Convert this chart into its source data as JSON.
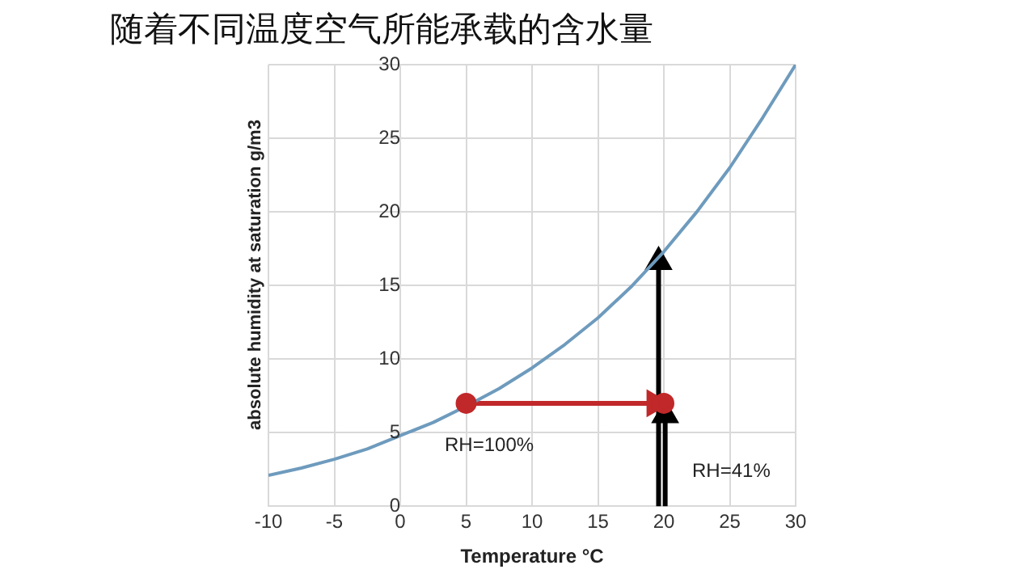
{
  "chart_data": {
    "type": "line",
    "title": "随着不同温度空气所能承载的含水量",
    "xlabel": "Temperature °C",
    "ylabel": "absolute humidity at saturation g/m3",
    "xlim": [
      -10,
      30
    ],
    "xticks": [
      -10,
      -5,
      0,
      5,
      10,
      15,
      20,
      25,
      30
    ],
    "ylim": [
      0,
      30
    ],
    "yticks": [
      0,
      5,
      10,
      15,
      20,
      25,
      30
    ],
    "grid": true,
    "legend": false,
    "series": [
      {
        "color": "#6e9bbd",
        "marker": "none",
        "x": [
          -10,
          -7.5,
          -5,
          -2.5,
          0,
          2.5,
          5,
          7.5,
          10,
          12.5,
          15,
          17.5,
          20,
          22.5,
          25,
          27.5,
          30
        ],
        "values": [
          2.1,
          2.6,
          3.2,
          3.9,
          4.8,
          5.7,
          6.8,
          8.0,
          9.4,
          11.0,
          12.8,
          14.9,
          17.3,
          20.0,
          23.0,
          26.4,
          30
        ]
      },
      {
        "color": "#c0282a",
        "marker": "triangle",
        "x": [
          5,
          19.3
        ],
        "values": [
          7,
          7
        ]
      },
      {
        "type": "scatter",
        "color": "#c0282a",
        "marker": "circle",
        "x": [
          5,
          20
        ],
        "values": [
          7,
          7
        ]
      },
      {
        "color": "#000000",
        "marker": "triangle",
        "x": [
          19.6,
          19.6
        ],
        "values": [
          0,
          16.6
        ]
      },
      {
        "color": "#000000",
        "marker": "triangle",
        "x": [
          20.1,
          20.1
        ],
        "values": [
          0,
          6.2
        ]
      }
    ],
    "annotations": [
      "RH=100%",
      "RH=41%"
    ]
  }
}
